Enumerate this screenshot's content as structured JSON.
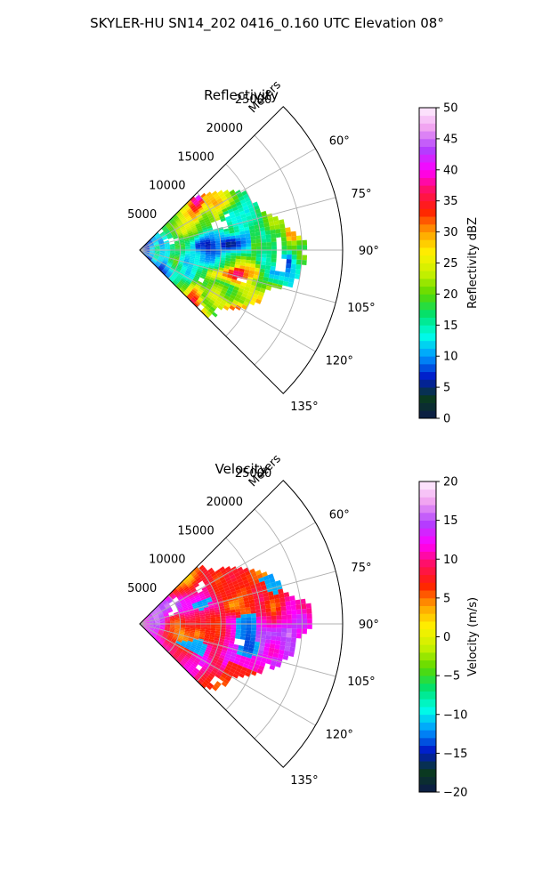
{
  "figure": {
    "title": "SKYLER-HU  SN14_202  0416_0.160 UTC Elevation 08°"
  },
  "chart_data": [
    {
      "type": "heatmap",
      "projection": "polar-sector",
      "title": "Reflectivity",
      "radial_label": "Meters",
      "radial_ticks": [
        "5000",
        "10000",
        "15000",
        "20000",
        "25000"
      ],
      "radial_tick_values": [
        5000,
        10000,
        15000,
        20000,
        25000
      ],
      "radial_max": 25000,
      "angle_ticks": [
        "60°",
        "75°",
        "90°",
        "105°",
        "120°",
        "135°"
      ],
      "angle_tick_values": [
        60,
        75,
        90,
        105,
        120,
        135
      ],
      "angle_range": [
        45,
        135
      ],
      "grid": true,
      "colorbar": {
        "label": "Reflectivity dBZ",
        "range": [
          0,
          50
        ],
        "ticks": [
          "0",
          "5",
          "10",
          "15",
          "20",
          "25",
          "30",
          "35",
          "40",
          "45",
          "50"
        ],
        "stops": [
          "#0c1a4a",
          "#0a3b1e",
          "#0018c8",
          "#0098ff",
          "#00ffe6",
          "#00e070",
          "#5ad800",
          "#c8f000",
          "#fff100",
          "#ffa000",
          "#ff2000",
          "#ff1060",
          "#ff00ff",
          "#b040ff",
          "#f0a0f0",
          "#fff0ff"
        ]
      },
      "field_description": "scattered precipitation echoes, mostly 15–30 dBZ with embedded 35–45 dBZ cores"
    },
    {
      "type": "heatmap",
      "projection": "polar-sector",
      "title": "Velocity",
      "radial_label": "Meters",
      "radial_ticks": [
        "5000",
        "10000",
        "15000",
        "20000",
        "25000"
      ],
      "radial_tick_values": [
        5000,
        10000,
        15000,
        20000,
        25000
      ],
      "radial_max": 25000,
      "angle_ticks": [
        "60°",
        "75°",
        "90°",
        "105°",
        "120°",
        "135°"
      ],
      "angle_tick_values": [
        60,
        75,
        90,
        105,
        120,
        135
      ],
      "angle_range": [
        45,
        135
      ],
      "grid": true,
      "colorbar": {
        "label": "Velocity (m/s)",
        "range": [
          -20,
          20
        ],
        "ticks": [
          "−20",
          "−15",
          "−10",
          "−5",
          "0",
          "5",
          "10",
          "15",
          "20"
        ],
        "stops": [
          "#0c1a4a",
          "#0a3b1e",
          "#0018c8",
          "#0098ff",
          "#00ffe6",
          "#00e070",
          "#5ad800",
          "#c8f000",
          "#fff100",
          "#ffa000",
          "#ff2000",
          "#ff1060",
          "#ff00ff",
          "#b040ff",
          "#f0a0f0",
          "#fff0ff"
        ]
      },
      "field_description": "outbound 5–12 m/s over most of the sector, inbound −10 to −15 m/s patches near 85–100° and 105–115°"
    }
  ]
}
